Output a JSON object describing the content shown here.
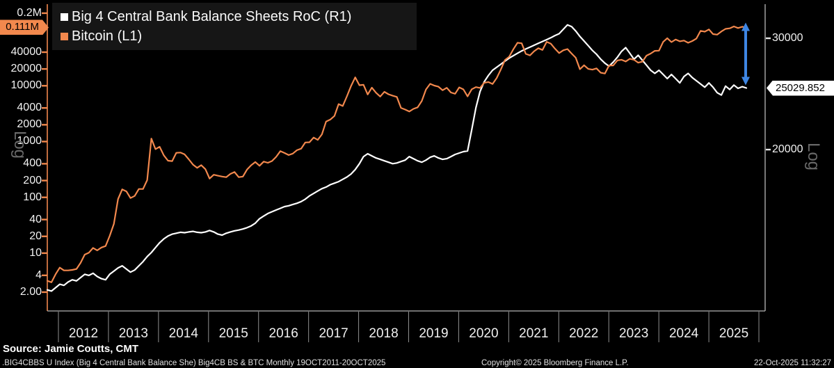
{
  "legend": {
    "items": [
      {
        "label": "Big 4 Central Bank Balance Sheets RoC (R1)",
        "color": "#ffffff"
      },
      {
        "label": "Bitcoin (L1)",
        "color": "#F2884D"
      }
    ]
  },
  "left_axis": {
    "scale_label": "Log",
    "color": "#F2884D",
    "ticks": [
      {
        "label": "0.2M",
        "value": 200000
      },
      {
        "label": "40000",
        "value": 40000
      },
      {
        "label": "20000",
        "value": 20000
      },
      {
        "label": "10000",
        "value": 10000
      },
      {
        "label": "4000",
        "value": 4000
      },
      {
        "label": "2000",
        "value": 2000
      },
      {
        "label": "1000",
        "value": 1000
      },
      {
        "label": "400",
        "value": 400
      },
      {
        "label": "200",
        "value": 200
      },
      {
        "label": "100",
        "value": 100
      },
      {
        "label": "40",
        "value": 40
      },
      {
        "label": "20",
        "value": 20
      },
      {
        "label": "10",
        "value": 10
      },
      {
        "label": "4",
        "value": 4
      },
      {
        "label": "2.00",
        "value": 2
      }
    ],
    "badge": {
      "label": "0.111M",
      "value": 111000,
      "color": "#F2884D"
    }
  },
  "right_axis": {
    "scale_label": "Log",
    "color": "#c9c9c9",
    "ticks": [
      {
        "label": "30000",
        "value": 30000
      },
      {
        "label": "20000",
        "value": 20000
      }
    ],
    "badge": {
      "label": "25029.852",
      "value": 25029.852,
      "color": "#ffffff"
    }
  },
  "x_axis": {
    "years": [
      "2012",
      "2013",
      "2014",
      "2015",
      "2016",
      "2017",
      "2018",
      "2019",
      "2020",
      "2021",
      "2022",
      "2023",
      "2024",
      "2025"
    ]
  },
  "annotations": {
    "range_arrow": {
      "color": "#3E86E3",
      "position": "right-end-between-series"
    }
  },
  "source_line": "Source: Jamie Coutts, CMT",
  "footer": {
    "left": ".BIG4CBBS U Index (Big 4 Central Bank Balance She) Big4CB BS & BTC Monthly 19OCT2011-20OCT2025",
    "center": "Copyright© 2025 Bloomberg Finance L.P.",
    "right": "22-Oct-2025 11:32:27"
  },
  "chart_data": {
    "type": "line",
    "scale": "log",
    "frequency": "monthly",
    "x_start": "2011-10",
    "x_end": "2025-10",
    "legend_position": "top-left",
    "left_axis_range": [
      0.9,
      273000
    ],
    "right_axis_range": [
      11100,
      33800
    ],
    "series": [
      {
        "name": "Big 4 Central Bank Balance Sheets RoC",
        "axis": "right",
        "color": "#ffffff",
        "values": [
          12000,
          11950,
          12100,
          12250,
          12200,
          12350,
          12450,
          12400,
          12550,
          12700,
          12650,
          12750,
          12600,
          12500,
          12450,
          12700,
          12850,
          13000,
          13100,
          12950,
          12800,
          12900,
          13100,
          13300,
          13550,
          13750,
          14000,
          14250,
          14450,
          14600,
          14700,
          14750,
          14800,
          14780,
          14820,
          14850,
          14800,
          14780,
          14820,
          14900,
          14820,
          14700,
          14650,
          14750,
          14820,
          14880,
          14920,
          14980,
          15050,
          15150,
          15300,
          15550,
          15700,
          15850,
          15950,
          16050,
          16150,
          16250,
          16300,
          16380,
          16450,
          16550,
          16700,
          16900,
          17050,
          17200,
          17350,
          17450,
          17600,
          17700,
          17800,
          17950,
          18100,
          18300,
          18600,
          19000,
          19500,
          19700,
          19550,
          19400,
          19300,
          19200,
          19100,
          19000,
          19050,
          19150,
          19250,
          19500,
          19350,
          19200,
          19100,
          19250,
          19450,
          19550,
          19400,
          19300,
          19350,
          19500,
          19650,
          19750,
          19850,
          19900,
          21500,
          23300,
          24700,
          25600,
          26200,
          26700,
          27000,
          27300,
          27600,
          27900,
          28150,
          28400,
          28650,
          28850,
          29050,
          29250,
          29450,
          29650,
          29850,
          30050,
          30300,
          30500,
          31000,
          31500,
          31300,
          30800,
          30200,
          29700,
          29200,
          28700,
          28300,
          27800,
          27400,
          27100,
          27500,
          28000,
          28600,
          29000,
          28400,
          27800,
          28200,
          27700,
          27200,
          26700,
          26400,
          26700,
          26300,
          25900,
          26300,
          25900,
          25500,
          26100,
          26400,
          26000,
          25700,
          25400,
          25100,
          25500,
          25100,
          24600,
          24400,
          25200,
          24900,
          25300,
          25000,
          25150,
          25029.852
        ]
      },
      {
        "name": "Bitcoin",
        "axis": "left",
        "color": "#F2884D",
        "values": [
          3.2,
          3.0,
          4.2,
          5.5,
          4.9,
          4.9,
          5.0,
          5.2,
          6.7,
          9.4,
          10.2,
          12.4,
          11.2,
          12.6,
          13.4,
          20.4,
          33.4,
          93,
          139,
          128,
          97,
          106,
          141,
          141,
          204,
          1130,
          732,
          806,
          566,
          454,
          446,
          627,
          635,
          589,
          481,
          387,
          338,
          378,
          320,
          217,
          254,
          244,
          236,
          230,
          263,
          284,
          230,
          236,
          314,
          377,
          430,
          368,
          437,
          416,
          448,
          531,
          673,
          624,
          573,
          609,
          700,
          745,
          963,
          970,
          1179,
          1071,
          1347,
          2286,
          2480,
          2875,
          4703,
          4338,
          6468,
          9916,
          14156,
          10221,
          10397,
          6973,
          9240,
          7494,
          6404,
          7780,
          7037,
          6625,
          6317,
          4017,
          3742,
          3457,
          3854,
          4105,
          5350,
          8574,
          10817,
          10085,
          9630,
          8308,
          9199,
          7569,
          7193,
          9350,
          8599,
          6438,
          8658,
          9461,
          9137,
          11323,
          11680,
          10784,
          13781,
          19695,
          28994,
          33114,
          45137,
          58918,
          57750,
          37332,
          35040,
          41626,
          47166,
          43790,
          61318,
          57005,
          46306,
          38483,
          43193,
          45538,
          37714,
          31792,
          19784,
          23336,
          20049,
          19431,
          20495,
          17168,
          16547,
          23139,
          23147,
          28478,
          29268,
          27219,
          30477,
          29230,
          25931,
          26967,
          34667,
          37718,
          42265,
          42582,
          61198,
          71333,
          60636,
          67491,
          62678,
          64619,
          58969,
          63329,
          70215,
          96449,
          93429,
          102405,
          84373,
          82549,
          94207,
          104598,
          107135,
          115758,
          108236,
          114056,
          111000
        ]
      }
    ]
  }
}
